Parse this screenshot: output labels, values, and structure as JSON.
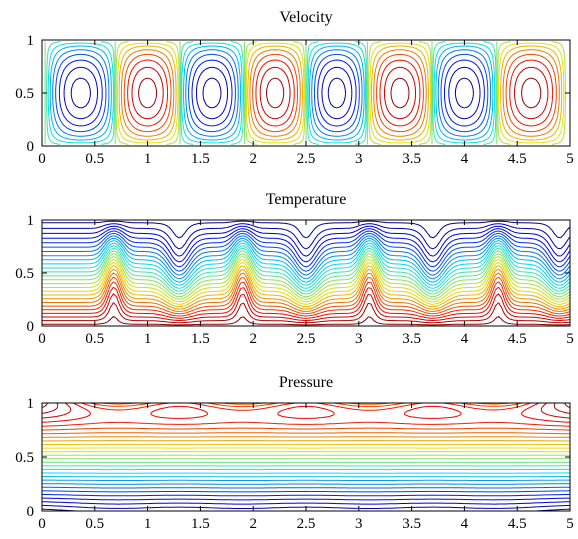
{
  "chart_data": [
    {
      "type": "contour",
      "title": "Velocity",
      "field": "velocity",
      "xlim": [
        0,
        5
      ],
      "ylim": [
        0,
        1
      ],
      "xticks": [
        0,
        0.5,
        1,
        1.5,
        2,
        2.5,
        3,
        3.5,
        4,
        4.5,
        5
      ],
      "xtick_labels": [
        "0",
        "0.5",
        "1",
        "1.5",
        "2",
        "2.5",
        "3",
        "3.5",
        "4",
        "4.5",
        "5"
      ],
      "yticks": [
        0,
        0.5,
        1
      ],
      "ytick_labels": [
        "0",
        "0.5",
        "1"
      ],
      "cell_centers_x": [
        0.39,
        1.0,
        1.61,
        2.22,
        2.78,
        3.39,
        4.0,
        4.61
      ],
      "cell_sign": [
        -1,
        1,
        -1,
        1,
        -1,
        1,
        -1,
        1
      ],
      "levels": 17,
      "colormap": "jet"
    },
    {
      "type": "contour",
      "title": "Temperature",
      "field": "temperature",
      "xlim": [
        0,
        5
      ],
      "ylim": [
        0,
        1
      ],
      "xticks": [
        0,
        0.5,
        1,
        1.5,
        2,
        2.5,
        3,
        3.5,
        4,
        4.5,
        5
      ],
      "xtick_labels": [
        "0",
        "0.5",
        "1",
        "1.5",
        "2",
        "2.5",
        "3",
        "3.5",
        "4",
        "4.5",
        "5"
      ],
      "yticks": [
        0,
        0.5,
        1
      ],
      "ytick_labels": [
        "0",
        "0.5",
        "1"
      ],
      "plume_up_x": [
        0.68,
        1.9,
        3.1,
        4.32
      ],
      "plume_down_x": [
        1.3,
        2.5,
        3.7,
        4.9
      ],
      "levels": 26,
      "colormap": "jet"
    },
    {
      "type": "contour",
      "title": "Pressure",
      "field": "pressure",
      "xlim": [
        0,
        5
      ],
      "ylim": [
        0,
        1
      ],
      "xticks": [
        0,
        0.5,
        1,
        1.5,
        2,
        2.5,
        3,
        3.5,
        4,
        4.5,
        5
      ],
      "xtick_labels": [
        "0",
        "0.5",
        "1",
        "1.5",
        "2",
        "2.5",
        "3",
        "3.5",
        "4",
        "4.5",
        "5"
      ],
      "yticks": [
        0,
        0.5,
        1
      ],
      "ytick_labels": [
        "0",
        "0.5",
        "1"
      ],
      "top_extrema_x": [
        0.7,
        1.9,
        3.1,
        4.3
      ],
      "levels": 28,
      "colormap": "jet"
    }
  ]
}
